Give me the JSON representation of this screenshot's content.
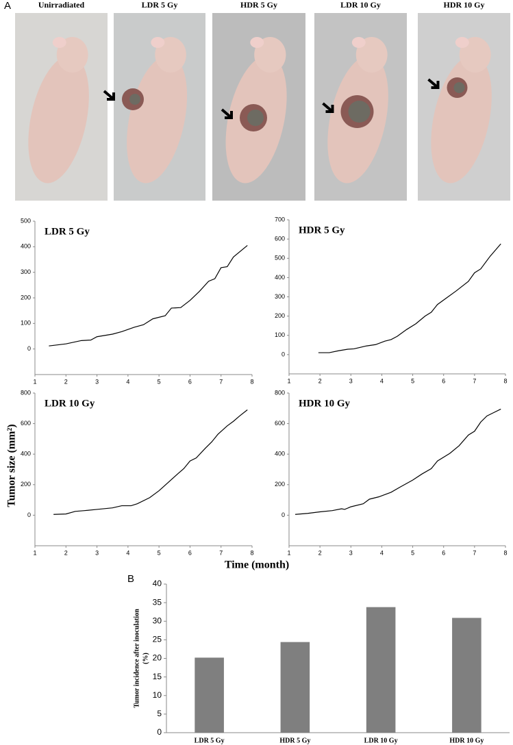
{
  "panel_a": {
    "label": "A",
    "photos": [
      "Unirradiated",
      "LDR 5 Gy",
      "HDR 5 Gy",
      "LDR 10 Gy",
      "HDR 10 Gy"
    ],
    "y_label": "Tumor size (mm²)",
    "x_label": "Time (month)"
  },
  "panel_b": {
    "label": "B"
  },
  "chart_data": [
    {
      "type": "line",
      "title": "LDR 5 Gy",
      "color": "#000000",
      "x": [
        1.45,
        2,
        2.5,
        2.8,
        3,
        3.5,
        3.8,
        4.2,
        4.5,
        4.8,
        5.2,
        5.4,
        5.7,
        6,
        6.3,
        6.6,
        6.8,
        7,
        7.2,
        7.4,
        7.85
      ],
      "values": [
        12,
        20,
        33,
        35,
        48,
        58,
        68,
        85,
        95,
        118,
        130,
        160,
        162,
        190,
        225,
        265,
        275,
        318,
        322,
        360,
        405
      ],
      "xlim": [
        1,
        8
      ],
      "xticks": [
        1,
        2,
        3,
        4,
        5,
        6,
        7,
        8
      ],
      "ylim": [
        -100,
        500
      ],
      "yticks": [
        0,
        100,
        200,
        300,
        400,
        500
      ]
    },
    {
      "type": "line",
      "title": "HDR 5 Gy",
      "color": "#000000",
      "x": [
        1.95,
        2.3,
        2.6,
        2.9,
        3.1,
        3.5,
        3.8,
        4.1,
        4.3,
        4.5,
        4.8,
        5.1,
        5.4,
        5.6,
        5.8,
        6.1,
        6.4,
        6.8,
        7,
        7.2,
        7.5,
        7.85
      ],
      "values": [
        10,
        10,
        20,
        28,
        30,
        45,
        52,
        70,
        78,
        95,
        130,
        160,
        200,
        220,
        260,
        295,
        330,
        380,
        425,
        445,
        510,
        575
      ],
      "xlim": [
        1,
        8
      ],
      "xticks": [
        1,
        2,
        3,
        4,
        5,
        6,
        7,
        8
      ],
      "ylim": [
        -100,
        700
      ],
      "yticks": [
        0,
        100,
        200,
        300,
        400,
        500,
        600,
        700
      ]
    },
    {
      "type": "line",
      "title": "LDR 10 Gy",
      "color": "#000000",
      "x": [
        1.6,
        2,
        2.3,
        2.6,
        3,
        3.5,
        3.8,
        4.1,
        4.3,
        4.7,
        5,
        5.3,
        5.6,
        5.8,
        6,
        6.2,
        6.5,
        6.7,
        6.9,
        7.2,
        7.4,
        7.6,
        7.85
      ],
      "values": [
        5,
        8,
        25,
        30,
        38,
        48,
        62,
        62,
        75,
        115,
        160,
        215,
        270,
        305,
        355,
        375,
        440,
        480,
        530,
        585,
        615,
        650,
        690
      ],
      "xlim": [
        1,
        8
      ],
      "xticks": [
        1,
        2,
        3,
        4,
        5,
        6,
        7,
        8
      ],
      "ylim": [
        -200,
        800
      ],
      "yticks": [
        0,
        200,
        400,
        600,
        800
      ]
    },
    {
      "type": "line",
      "title": "HDR 10 Gy",
      "color": "#000000",
      "x": [
        1.2,
        1.6,
        2,
        2.4,
        2.7,
        2.8,
        3,
        3.4,
        3.6,
        3.9,
        4.3,
        4.6,
        5,
        5.3,
        5.6,
        5.8,
        6.2,
        6.5,
        6.8,
        7,
        7.2,
        7.4,
        7.6,
        7.85
      ],
      "values": [
        5,
        12,
        22,
        30,
        42,
        38,
        55,
        75,
        105,
        120,
        150,
        185,
        230,
        270,
        305,
        355,
        405,
        455,
        525,
        550,
        610,
        650,
        670,
        695
      ],
      "xlim": [
        1,
        8
      ],
      "xticks": [
        1,
        2,
        3,
        4,
        5,
        6,
        7,
        8
      ],
      "ylim": [
        -200,
        800
      ],
      "yticks": [
        0,
        200,
        400,
        600,
        800
      ]
    },
    {
      "type": "bar",
      "color": "#7f7f7f",
      "ylabel": [
        "Tumor incidence after inoculation",
        "(%)"
      ],
      "categories": [
        "LDR 5 Gy",
        "HDR 5 Gy",
        "LDR 10 Gy",
        "HDR 10 Gy"
      ],
      "values": [
        20.2,
        24.4,
        33.8,
        30.9
      ],
      "ylim": [
        0,
        40
      ],
      "yticks": [
        0,
        5,
        10,
        15,
        20,
        25,
        30,
        35,
        40
      ]
    }
  ]
}
